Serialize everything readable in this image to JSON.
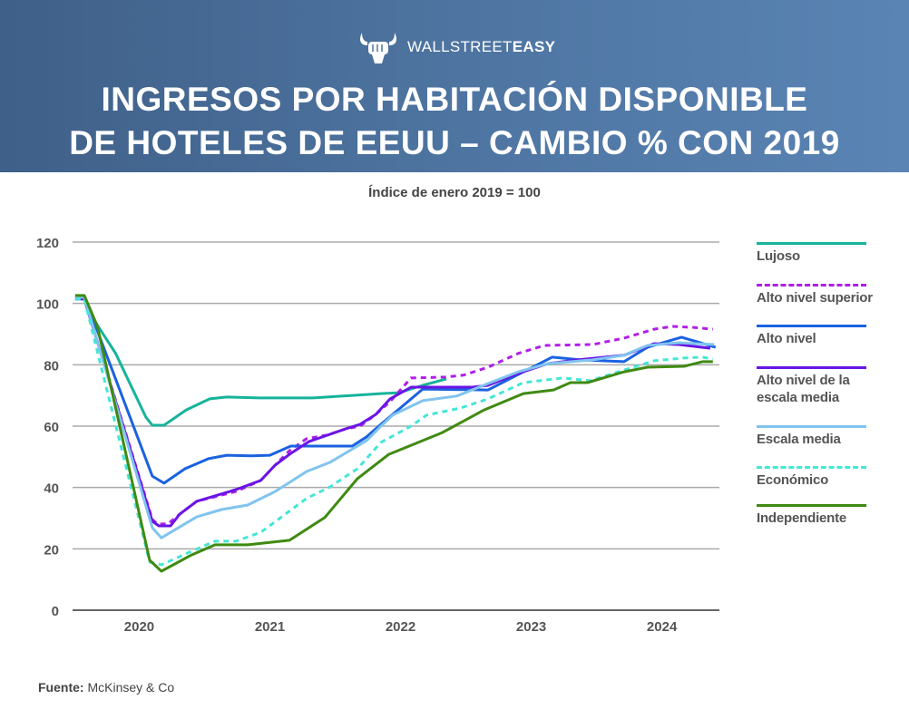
{
  "header": {
    "logo_light": "WALLSTREET",
    "logo_bold": "EASY",
    "title_line1": "INGRESOS POR HABITACIÓN DISPONIBLE",
    "title_line2": "DE HOTELES DE EEUU – CAMBIO % CON 2019"
  },
  "footer": {
    "source_label": "Fuente:",
    "source_value": "McKinsey & Co"
  },
  "chart_data": {
    "type": "line",
    "title": "Índice de enero 2019 = 100",
    "xlabel": "",
    "ylabel": "",
    "ylim": [
      0,
      120
    ],
    "xlim": [
      2019.49,
      2024.44
    ],
    "yticks": [
      0,
      20,
      40,
      60,
      80,
      100,
      120
    ],
    "xticks": [
      {
        "label": "2020",
        "x": 2020
      },
      {
        "label": "2021",
        "x": 2021
      },
      {
        "label": "2022",
        "x": 2022
      },
      {
        "label": "2023",
        "x": 2023
      },
      {
        "label": "2024",
        "x": 2024
      }
    ],
    "grid": true,
    "legend_position": "right",
    "series": [
      {
        "name": "Lujoso",
        "color": "#17b39b",
        "dashed": false,
        "x": [
          2019.51,
          2019.58,
          2019.65,
          2019.82,
          2020.05,
          2020.1,
          2020.19,
          2020.36,
          2020.54,
          2020.67,
          2020.92,
          2021.33,
          2021.85,
          2021.99,
          2022.17,
          2022.35
        ],
        "y": [
          102.3,
          102.3,
          94.9,
          83.7,
          63.0,
          60.3,
          60.3,
          65.3,
          68.9,
          69.5,
          69.2,
          69.2,
          70.6,
          70.9,
          73.3,
          75.4
        ]
      },
      {
        "name": "Alto nivel superior",
        "color": "#b01ee8",
        "dashed": true,
        "x": [
          2019.51,
          2019.58,
          2020.1,
          2020.14,
          2020.22,
          2020.31,
          2020.44,
          2020.74,
          2020.93,
          2021.04,
          2021.15,
          2021.28,
          2021.44,
          2021.58,
          2021.69,
          2021.81,
          2021.92,
          2022.08,
          2022.34,
          2022.48,
          2022.67,
          2022.9,
          2023.1,
          2023.47,
          2023.71,
          2023.94,
          2024.08,
          2024.24,
          2024.39
        ],
        "y": [
          101.4,
          101.4,
          29.6,
          28.1,
          28.1,
          31.3,
          35.5,
          38.7,
          42.3,
          47.3,
          52.0,
          55.9,
          57.1,
          59.1,
          60.0,
          63.8,
          68.0,
          75.7,
          76.0,
          76.6,
          79.2,
          83.7,
          86.3,
          86.6,
          88.7,
          91.6,
          92.5,
          92.2,
          91.6
        ]
      },
      {
        "name": "Alto nivel",
        "color": "#1a62e0",
        "dashed": false,
        "x": [
          2019.51,
          2019.58,
          2020.1,
          2020.19,
          2020.35,
          2020.53,
          2020.67,
          2020.86,
          2021.0,
          2021.16,
          2021.63,
          2021.74,
          2021.85,
          2022.17,
          2022.67,
          2023.16,
          2023.38,
          2023.71,
          2023.89,
          2024.15,
          2024.41
        ],
        "y": [
          102.3,
          102.3,
          43.7,
          41.4,
          46.1,
          49.4,
          50.5,
          50.3,
          50.5,
          53.5,
          53.5,
          56.5,
          60.6,
          72.1,
          71.8,
          82.5,
          81.6,
          81.0,
          85.7,
          89.0,
          85.7
        ]
      },
      {
        "name": "Alto nivel de la escala media",
        "color": "#6a14e6",
        "dashed": false,
        "x": [
          2019.51,
          2019.58,
          2020.1,
          2020.15,
          2020.24,
          2020.31,
          2020.44,
          2020.74,
          2020.93,
          2021.04,
          2021.16,
          2021.3,
          2021.58,
          2021.69,
          2021.81,
          2021.92,
          2022.08,
          2022.55,
          2022.67,
          2022.9,
          2023.13,
          2023.36,
          2023.71,
          2023.94,
          2024.13,
          2024.37
        ],
        "y": [
          101.4,
          101.4,
          29.0,
          27.5,
          27.5,
          31.3,
          35.5,
          39.3,
          42.3,
          47.3,
          51.1,
          55.0,
          59.1,
          60.6,
          63.8,
          68.9,
          72.7,
          72.7,
          73.3,
          77.2,
          80.4,
          81.6,
          83.1,
          86.9,
          86.6,
          85.4
        ]
      },
      {
        "name": "Escala media",
        "color": "#80c4ee",
        "dashed": false,
        "x": [
          2019.51,
          2019.58,
          2020.1,
          2020.17,
          2020.44,
          2020.63,
          2020.83,
          2021.04,
          2021.28,
          2021.46,
          2021.74,
          2021.85,
          2021.94,
          2022.17,
          2022.43,
          2022.67,
          2022.9,
          2023.13,
          2023.47,
          2023.71,
          2023.89,
          2024.13,
          2024.4
        ],
        "y": [
          102.0,
          102.0,
          26.9,
          23.6,
          30.4,
          32.8,
          34.3,
          38.7,
          45.2,
          48.2,
          55.3,
          60.0,
          63.6,
          68.3,
          69.8,
          73.9,
          77.7,
          80.4,
          81.6,
          83.1,
          86.3,
          87.2,
          86.6
        ]
      },
      {
        "name": "Económico",
        "color": "#45e6d6",
        "dashed": true,
        "x": [
          2019.51,
          2019.58,
          2020.08,
          2020.17,
          2020.4,
          2020.58,
          2020.74,
          2020.93,
          2021.09,
          2021.28,
          2021.46,
          2021.67,
          2021.85,
          2022.08,
          2022.2,
          2022.46,
          2022.67,
          2022.94,
          2023.24,
          2023.45,
          2023.71,
          2023.94,
          2024.17,
          2024.31,
          2024.39
        ],
        "y": [
          101.4,
          101.4,
          15.7,
          14.8,
          19.2,
          22.5,
          22.5,
          25.4,
          30.4,
          36.4,
          40.2,
          46.1,
          54.7,
          60.0,
          63.6,
          65.9,
          68.9,
          74.2,
          75.7,
          74.8,
          78.3,
          81.3,
          82.2,
          82.5,
          81.9
        ]
      },
      {
        "name": "Independiente",
        "color": "#3f8a12",
        "dashed": false,
        "x": [
          2019.51,
          2019.58,
          2019.68,
          2020.08,
          2020.17,
          2020.4,
          2020.58,
          2020.83,
          2021.15,
          2021.42,
          2021.67,
          2021.91,
          2022.32,
          2022.64,
          2022.94,
          2023.17,
          2023.3,
          2023.43,
          2023.71,
          2023.89,
          2024.17,
          2024.31,
          2024.39
        ],
        "y": [
          102.6,
          102.6,
          92.5,
          16.3,
          12.7,
          18.0,
          21.3,
          21.3,
          22.8,
          30.2,
          42.9,
          50.8,
          57.9,
          65.3,
          70.6,
          71.8,
          74.2,
          74.2,
          77.7,
          79.2,
          79.5,
          81.0,
          81.0
        ]
      }
    ]
  }
}
